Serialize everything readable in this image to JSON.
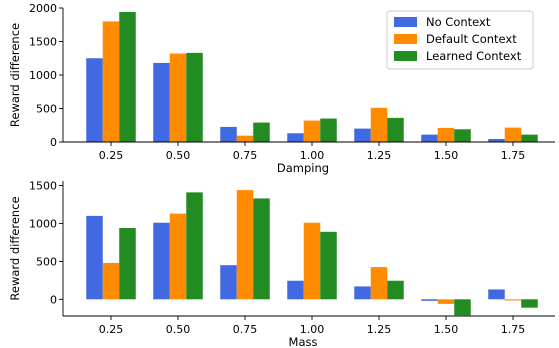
{
  "colors": {
    "no_context": "#4169e1",
    "default_context": "#ff8c00",
    "learned_context": "#228b22"
  },
  "legend": {
    "placement": "top-right",
    "entries": [
      "No Context",
      "Default Context",
      "Learned Context"
    ]
  },
  "chart_data": [
    {
      "type": "bar",
      "xlabel": "Damping",
      "ylabel": "Reward difference",
      "categories": [
        "0.25",
        "0.50",
        "0.75",
        "1.00",
        "1.25",
        "1.50",
        "1.75"
      ],
      "ylim": [
        0,
        2000
      ],
      "yticks": [
        0,
        500,
        1000,
        1500,
        2000
      ],
      "series": [
        {
          "name": "No Context",
          "color_key": "no_context",
          "values": [
            1250,
            1180,
            225,
            130,
            200,
            110,
            45
          ]
        },
        {
          "name": "Default Context",
          "color_key": "default_context",
          "values": [
            1800,
            1320,
            95,
            320,
            510,
            210,
            215
          ]
        },
        {
          "name": "Learned Context",
          "color_key": "learned_context",
          "values": [
            1940,
            1330,
            290,
            350,
            360,
            190,
            110
          ]
        }
      ]
    },
    {
      "type": "bar",
      "xlabel": "Mass",
      "ylabel": "Reward difference",
      "categories": [
        "0.25",
        "0.50",
        "0.75",
        "1.00",
        "1.25",
        "1.50",
        "1.75"
      ],
      "ylim": [
        -220,
        1560
      ],
      "yticks": [
        0,
        500,
        1000,
        1500
      ],
      "series": [
        {
          "name": "No Context",
          "color_key": "no_context",
          "values": [
            1100,
            1010,
            450,
            245,
            170,
            -20,
            130
          ]
        },
        {
          "name": "Default Context",
          "color_key": "default_context",
          "values": [
            480,
            1130,
            1440,
            1010,
            425,
            -60,
            -15
          ]
        },
        {
          "name": "Learned Context",
          "color_key": "learned_context",
          "values": [
            940,
            1410,
            1330,
            890,
            245,
            -210,
            -110
          ]
        }
      ]
    }
  ]
}
